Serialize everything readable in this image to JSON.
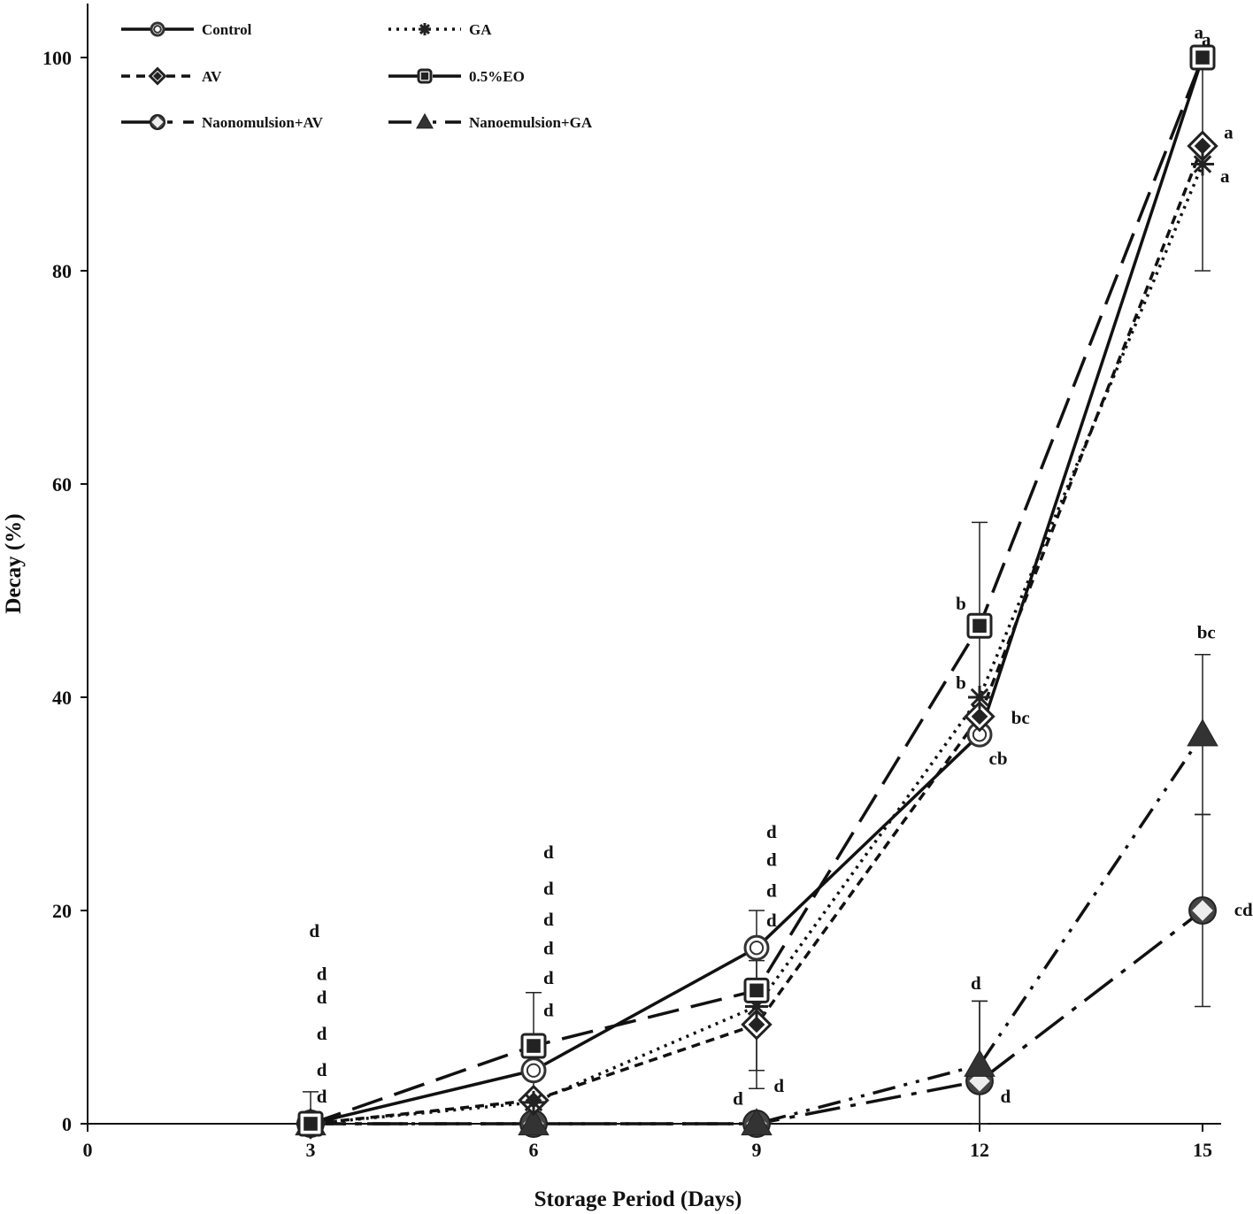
{
  "chart_data": {
    "type": "line",
    "title": "",
    "xlabel": "Storage Period (Days)",
    "ylabel": "Decay (%)",
    "xlim": [
      0,
      15
    ],
    "ylim": [
      0,
      105
    ],
    "x_ticks": [
      0,
      3,
      6,
      9,
      12,
      15
    ],
    "y_ticks": [
      0,
      20,
      40,
      60,
      80,
      100
    ],
    "x_tick_labels": [
      "0",
      "3",
      "6",
      "9",
      "12",
      "15"
    ],
    "y_tick_labels": [
      "0",
      "20",
      "40",
      "60",
      "80",
      "100"
    ],
    "grid": false,
    "legend_position": "top-left",
    "series": [
      {
        "name": "Control",
        "x": [
          3,
          6,
          9,
          12,
          15
        ],
        "values": [
          0,
          5,
          16.5,
          36.5,
          100
        ],
        "errors": [
          3,
          0,
          0,
          0,
          0
        ],
        "dash": "",
        "width": 3.5,
        "marker": "circle"
      },
      {
        "name": "GA",
        "x": [
          3,
          6,
          9,
          12,
          15
        ],
        "values": [
          0,
          2,
          11,
          40,
          90
        ],
        "errors": [
          0,
          0,
          0,
          0,
          10
        ],
        "dash": "3 6",
        "width": 3.5,
        "marker": "asterisk"
      },
      {
        "name": "AV",
        "x": [
          3,
          6,
          9,
          12,
          15
        ],
        "values": [
          0,
          2.2,
          9.3,
          38.2,
          91.7
        ],
        "errors": [
          0,
          0,
          6,
          0,
          0
        ],
        "dash": "10 7",
        "width": 3.5,
        "marker": "diamond"
      },
      {
        "name": "0.5%EO",
        "x": [
          3,
          6,
          9,
          12,
          15
        ],
        "values": [
          0,
          7.3,
          12.5,
          46.7,
          100
        ],
        "errors": [
          0,
          5,
          7.5,
          9.7,
          0
        ],
        "dash": "36 14",
        "width": 3.5,
        "marker": "square"
      },
      {
        "name": "Naonomulsion+AV",
        "x": [
          3,
          6,
          9,
          12,
          15
        ],
        "values": [
          0,
          0,
          0,
          4,
          20
        ],
        "errors": [
          0,
          0,
          0,
          7.5,
          9
        ],
        "dash": "40 12 6 12",
        "width": 3.5,
        "marker": "big-diamond"
      },
      {
        "name": "Nanoemulsion+GA",
        "x": [
          3,
          6,
          9,
          12,
          15
        ],
        "values": [
          0,
          0,
          0,
          5.5,
          36.5
        ],
        "errors": [
          0,
          0,
          0,
          6,
          7.5
        ],
        "dash": "26 10 4 10 4 10",
        "width": 3.5,
        "marker": "triangle"
      }
    ],
    "annotations": [
      {
        "text": "d",
        "x": 3.05,
        "y": 17.5
      },
      {
        "text": "d",
        "x": 3.15,
        "y": 13.5
      },
      {
        "text": "d",
        "x": 3.15,
        "y": 11.3
      },
      {
        "text": "d",
        "x": 3.15,
        "y": 7.9
      },
      {
        "text": "d",
        "x": 3.15,
        "y": 4.5
      },
      {
        "text": "d",
        "x": 3.15,
        "y": 2.0
      },
      {
        "text": "d",
        "x": 6.2,
        "y": 24.9
      },
      {
        "text": "d",
        "x": 6.2,
        "y": 21.5
      },
      {
        "text": "d",
        "x": 6.2,
        "y": 18.6
      },
      {
        "text": "d",
        "x": 6.2,
        "y": 15.9
      },
      {
        "text": "d",
        "x": 6.2,
        "y": 13.1
      },
      {
        "text": "d",
        "x": 6.2,
        "y": 10.1
      },
      {
        "text": "d",
        "x": 9.2,
        "y": 26.8
      },
      {
        "text": "d",
        "x": 9.2,
        "y": 24.2
      },
      {
        "text": "d",
        "x": 9.2,
        "y": 21.3
      },
      {
        "text": "d",
        "x": 9.2,
        "y": 18.5
      },
      {
        "text": "d",
        "x": 8.75,
        "y": 1.8
      },
      {
        "text": "d",
        "x": 9.3,
        "y": 3.0
      },
      {
        "text": "b",
        "x": 11.75,
        "y": 48.2
      },
      {
        "text": "b",
        "x": 11.75,
        "y": 40.8
      },
      {
        "text": "bc",
        "x": 12.55,
        "y": 37.5
      },
      {
        "text": "cb",
        "x": 12.25,
        "y": 33.7
      },
      {
        "text": "d",
        "x": 11.95,
        "y": 12.6
      },
      {
        "text": "d",
        "x": 12.35,
        "y": 2.0
      },
      {
        "text": "a",
        "x": 14.95,
        "y": 101.8
      },
      {
        "text": "a",
        "x": 15.05,
        "y": 101.1
      },
      {
        "text": "a",
        "x": 15.35,
        "y": 92.4
      },
      {
        "text": "a",
        "x": 15.3,
        "y": 88.3
      },
      {
        "text": "bc",
        "x": 15.05,
        "y": 45.5
      },
      {
        "text": "cd",
        "x": 15.55,
        "y": 19.5
      }
    ]
  }
}
